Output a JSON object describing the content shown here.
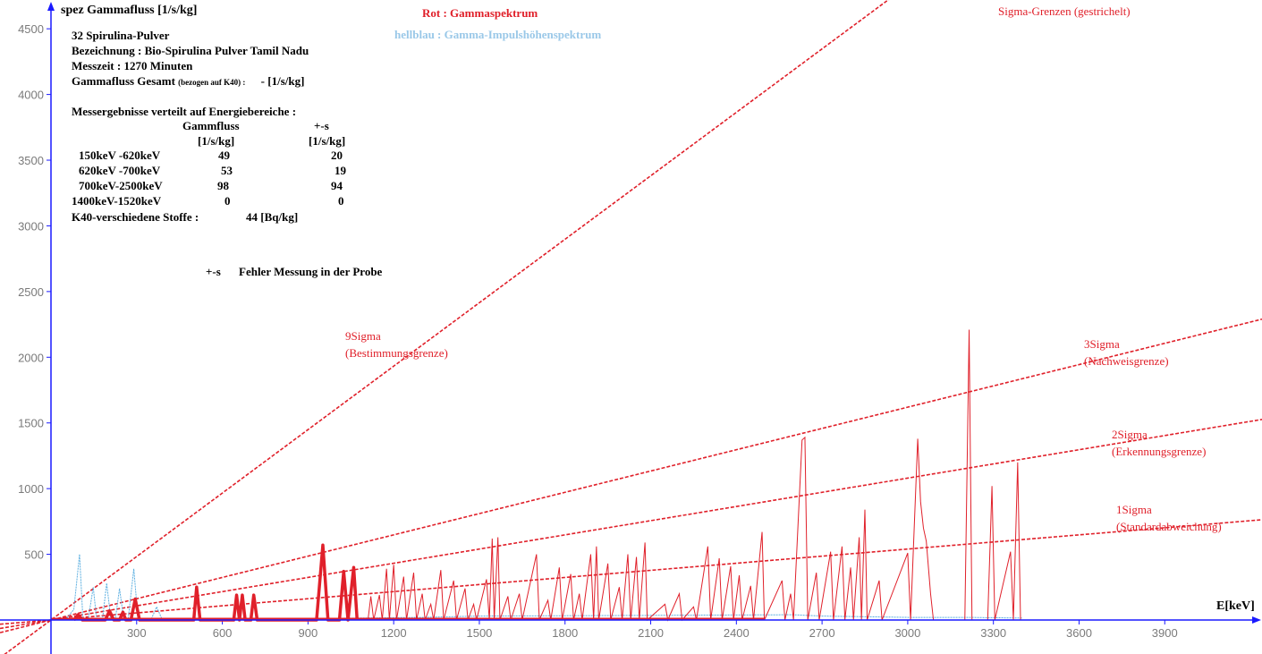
{
  "chart_data": {
    "type": "line",
    "ylabel": "spez Gammafluss [1/s/kg]",
    "xlabel": "E[keV]",
    "xlim": [
      0,
      4300
    ],
    "ylim": [
      -300,
      4650
    ],
    "xticks": [
      300,
      600,
      900,
      1200,
      1500,
      1800,
      2100,
      2400,
      2700,
      3000,
      3300,
      3600,
      3900
    ],
    "yticks": [
      500,
      1000,
      1500,
      2000,
      2500,
      3000,
      3500,
      4000,
      4500
    ],
    "legend": {
      "red": "Rot   : Gammaspektrum",
      "blue": "hellblau : Gamma-Impulshöhenspektrum",
      "sigma": "Sigma-Grenzen (gestrichelt)"
    },
    "sigma_lines": [
      {
        "name": "9Sigma",
        "note": "(Bestimmungsgrenze)",
        "slope": 1.61
      },
      {
        "name": "3Sigma",
        "note": "(Nachweisgrenze)",
        "slope": 0.54
      },
      {
        "name": "2Sigma",
        "note": "(Erkennungsgrenze)",
        "slope": 0.36
      },
      {
        "name": "1Sigma",
        "note": "(Standardabweichung)",
        "slope": 0.18
      }
    ],
    "series": [
      {
        "name": "Gammaspektrum",
        "color": "#e0202a",
        "points": [
          [
            80,
            0
          ],
          [
            95,
            40
          ],
          [
            110,
            0
          ],
          [
            190,
            0
          ],
          [
            205,
            70
          ],
          [
            220,
            0
          ],
          [
            240,
            0
          ],
          [
            252,
            60
          ],
          [
            262,
            0
          ],
          [
            280,
            0
          ],
          [
            295,
            160
          ],
          [
            310,
            0
          ],
          [
            500,
            0
          ],
          [
            510,
            250
          ],
          [
            522,
            0
          ],
          [
            640,
            0
          ],
          [
            650,
            190
          ],
          [
            660,
            0
          ],
          [
            670,
            190
          ],
          [
            680,
            0
          ],
          [
            700,
            0
          ],
          [
            710,
            190
          ],
          [
            722,
            0
          ],
          [
            930,
            0
          ],
          [
            952,
            570
          ],
          [
            970,
            0
          ],
          [
            1010,
            0
          ],
          [
            1025,
            370
          ],
          [
            1040,
            0
          ],
          [
            1060,
            400
          ],
          [
            1072,
            0
          ],
          [
            1110,
            0
          ],
          [
            1120,
            180
          ],
          [
            1130,
            0
          ],
          [
            1150,
            190
          ],
          [
            1160,
            0
          ],
          [
            1175,
            390
          ],
          [
            1185,
            0
          ],
          [
            1200,
            420
          ],
          [
            1210,
            0
          ],
          [
            1235,
            330
          ],
          [
            1245,
            0
          ],
          [
            1270,
            360
          ],
          [
            1280,
            0
          ],
          [
            1300,
            200
          ],
          [
            1310,
            0
          ],
          [
            1330,
            120
          ],
          [
            1340,
            0
          ],
          [
            1365,
            380
          ],
          [
            1375,
            0
          ],
          [
            1410,
            300
          ],
          [
            1420,
            0
          ],
          [
            1450,
            240
          ],
          [
            1460,
            0
          ],
          [
            1480,
            120
          ],
          [
            1490,
            0
          ],
          [
            1525,
            310
          ],
          [
            1535,
            0
          ],
          [
            1545,
            620
          ],
          [
            1552,
            0
          ],
          [
            1565,
            630
          ],
          [
            1572,
            0
          ],
          [
            1600,
            180
          ],
          [
            1610,
            0
          ],
          [
            1640,
            200
          ],
          [
            1650,
            0
          ],
          [
            1700,
            500
          ],
          [
            1710,
            0
          ],
          [
            1740,
            150
          ],
          [
            1750,
            0
          ],
          [
            1780,
            400
          ],
          [
            1790,
            0
          ],
          [
            1820,
            350
          ],
          [
            1830,
            0
          ],
          [
            1850,
            200
          ],
          [
            1860,
            0
          ],
          [
            1890,
            500
          ],
          [
            1900,
            0
          ],
          [
            1910,
            560
          ],
          [
            1918,
            0
          ],
          [
            1950,
            430
          ],
          [
            1960,
            0
          ],
          [
            1990,
            250
          ],
          [
            2000,
            0
          ],
          [
            2020,
            500
          ],
          [
            2030,
            0
          ],
          [
            2050,
            480
          ],
          [
            2060,
            0
          ],
          [
            2080,
            590
          ],
          [
            2088,
            0
          ],
          [
            2150,
            120
          ],
          [
            2160,
            0
          ],
          [
            2200,
            200
          ],
          [
            2210,
            0
          ],
          [
            2250,
            100
          ],
          [
            2260,
            0
          ],
          [
            2300,
            560
          ],
          [
            2310,
            0
          ],
          [
            2340,
            470
          ],
          [
            2350,
            0
          ],
          [
            2380,
            410
          ],
          [
            2390,
            0
          ],
          [
            2410,
            340
          ],
          [
            2420,
            0
          ],
          [
            2450,
            260
          ],
          [
            2460,
            0
          ],
          [
            2490,
            670
          ],
          [
            2498,
            0
          ],
          [
            2560,
            300
          ],
          [
            2570,
            0
          ],
          [
            2590,
            200
          ],
          [
            2600,
            0
          ],
          [
            2630,
            1370
          ],
          [
            2640,
            1390
          ],
          [
            2650,
            0
          ],
          [
            2680,
            360
          ],
          [
            2690,
            0
          ],
          [
            2730,
            520
          ],
          [
            2740,
            0
          ],
          [
            2770,
            560
          ],
          [
            2780,
            0
          ],
          [
            2800,
            400
          ],
          [
            2810,
            0
          ],
          [
            2830,
            630
          ],
          [
            2838,
            0
          ],
          [
            2850,
            840
          ],
          [
            2858,
            0
          ],
          [
            2900,
            300
          ],
          [
            2910,
            0
          ],
          [
            3000,
            510
          ],
          [
            3010,
            0
          ],
          [
            3035,
            1380
          ],
          [
            3045,
            900
          ],
          [
            3055,
            700
          ],
          [
            3065,
            600
          ],
          [
            3080,
            200
          ],
          [
            3090,
            0
          ],
          [
            3200,
            0
          ],
          [
            3215,
            2210
          ],
          [
            3225,
            0
          ],
          [
            3280,
            0
          ],
          [
            3295,
            1020
          ],
          [
            3305,
            0
          ],
          [
            3360,
            520
          ],
          [
            3370,
            0
          ],
          [
            3385,
            1200
          ],
          [
            3395,
            0
          ],
          [
            3440,
            0
          ]
        ]
      },
      {
        "name": "Gamma-Impulshöhenspektrum",
        "color": "#5aaee0",
        "points": [
          [
            50,
            0
          ],
          [
            80,
            80
          ],
          [
            100,
            500
          ],
          [
            112,
            0
          ],
          [
            130,
            0
          ],
          [
            148,
            250
          ],
          [
            160,
            0
          ],
          [
            180,
            0
          ],
          [
            195,
            280
          ],
          [
            210,
            0
          ],
          [
            225,
            0
          ],
          [
            240,
            240
          ],
          [
            255,
            0
          ],
          [
            270,
            0
          ],
          [
            290,
            390
          ],
          [
            305,
            0
          ],
          [
            350,
            0
          ],
          [
            370,
            100
          ],
          [
            390,
            0
          ],
          [
            1300,
            20
          ],
          [
            1500,
            30
          ],
          [
            2600,
            40
          ],
          [
            2700,
            30
          ],
          [
            3000,
            20
          ],
          [
            3200,
            20
          ],
          [
            3400,
            15
          ]
        ]
      }
    ]
  },
  "info": {
    "line1": "32 Spirulina-Pulver",
    "line2": "Bezeichnung : Bio-Spirulina Pulver Tamil Nadu",
    "line3": "Messzeit : 1270 Minuten",
    "line4a": "Gammafluss Gesamt",
    "line4b": "(bezogen auf K40) :",
    "line4c": "-  [1/s/kg]",
    "heading": "Messergebnisse verteilt auf  Energiebereiche :",
    "col1": "Gammfluss",
    "col1unit": "[1/s/kg]",
    "col2": "+-s",
    "col2unit": "[1/s/kg]",
    "rows": [
      {
        "range": "150keV -620keV",
        "flux": "49",
        "err": "20"
      },
      {
        "range": "620keV -700keV",
        "flux": "53",
        "err": "19"
      },
      {
        "range": "700keV-2500keV",
        "flux": "98",
        "err": "94"
      },
      {
        "range": "1400keV-1520keV",
        "flux": "0",
        "err": "0"
      }
    ],
    "k40_label": "K40-verschiedene Stoffe :",
    "k40_value": "44  [Bq/kg]",
    "error_note_a": "+-s",
    "error_note_b": "Fehler Messung in der Probe"
  }
}
